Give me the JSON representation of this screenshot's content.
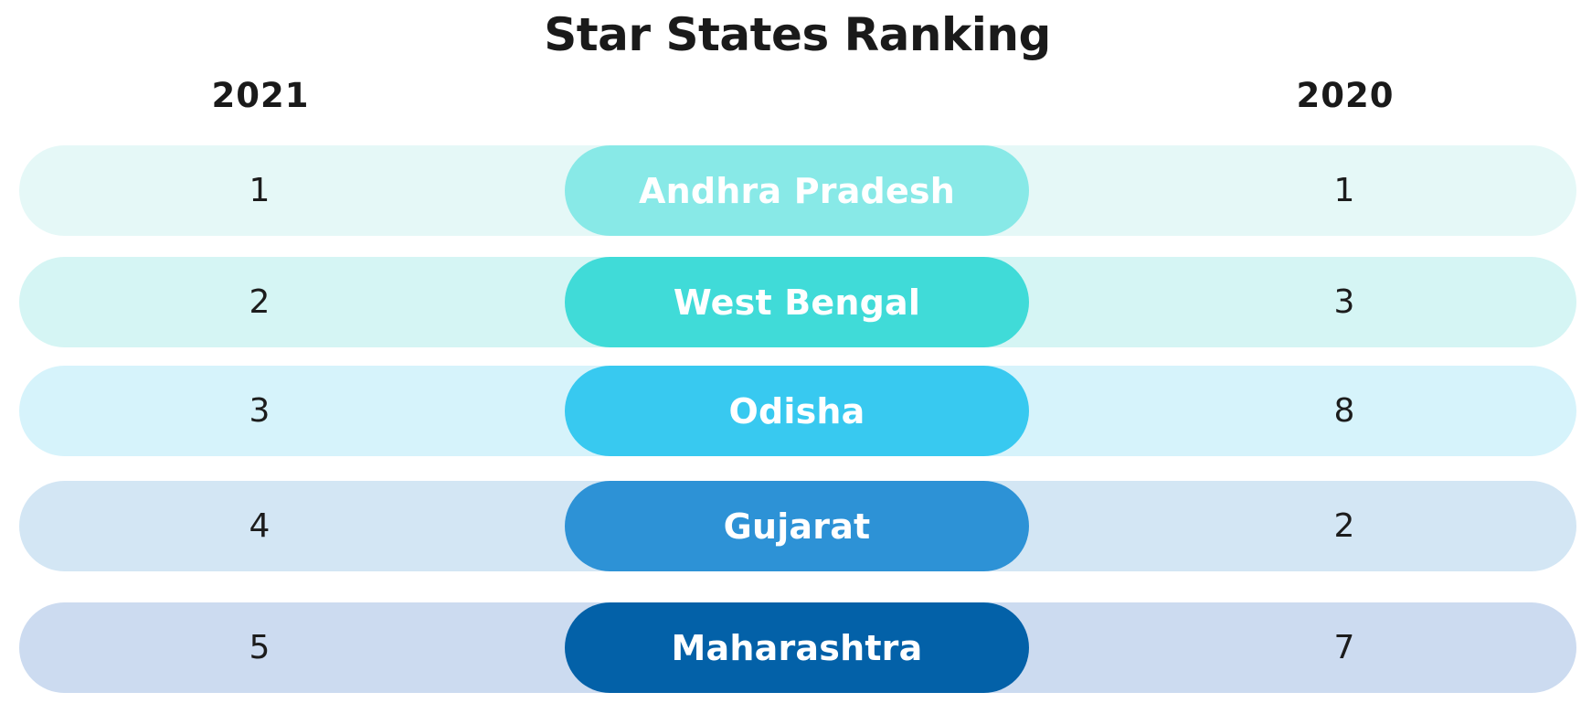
{
  "title": "Star States Ranking",
  "chart_data": {
    "type": "table",
    "title": "Star States Ranking",
    "columns": [
      "2021",
      "2020"
    ],
    "rows": [
      {
        "state": "Andhra Pradesh",
        "rank_2021": "1",
        "rank_2020": "1",
        "pill_color": "#88E9E7",
        "row_color": "#E5F8F7"
      },
      {
        "state": "West Bengal",
        "rank_2021": "2",
        "rank_2020": "3",
        "pill_color": "#40DBD8",
        "row_color": "#D5F5F4"
      },
      {
        "state": "Odisha",
        "rank_2021": "3",
        "rank_2020": "8",
        "pill_color": "#38C9F0",
        "row_color": "#D6F3FB"
      },
      {
        "state": "Gujarat",
        "rank_2021": "4",
        "rank_2020": "2",
        "pill_color": "#2D92D6",
        "row_color": "#D3E6F4"
      },
      {
        "state": "Maharashtra",
        "rank_2021": "5",
        "rank_2020": "7",
        "pill_color": "#0361A8",
        "row_color": "#CCDBF0"
      }
    ]
  }
}
